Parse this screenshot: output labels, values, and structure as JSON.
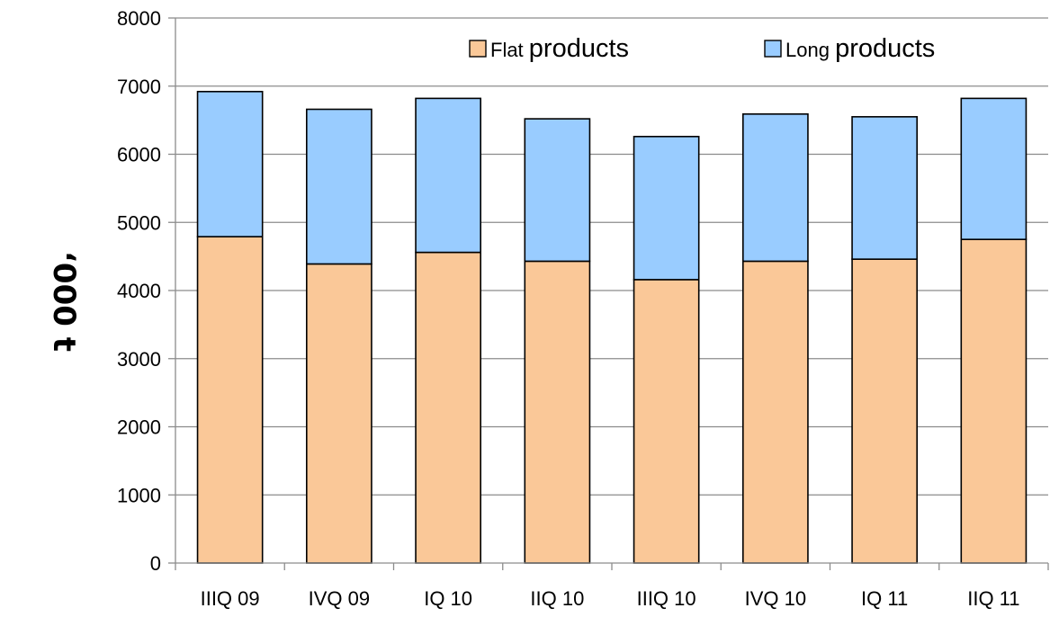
{
  "chart_data": {
    "type": "bar",
    "stacked": true,
    "categories": [
      "IIIQ 09",
      "IVQ 09",
      "IQ 10",
      "IIQ 10",
      "IIIQ 10",
      "IVQ 10",
      "IQ 11",
      "IIQ 11"
    ],
    "series": [
      {
        "name": "Flat products",
        "color": "#fac898",
        "values": [
          4790,
          4390,
          4560,
          4430,
          4160,
          4430,
          4460,
          4750
        ]
      },
      {
        "name": "Long products",
        "color": "#99ccff",
        "values": [
          2130,
          2270,
          2260,
          2090,
          2100,
          2160,
          2090,
          2070
        ]
      }
    ],
    "legend": {
      "position": "top-right",
      "items": [
        {
          "small": "Flat",
          "large": "products"
        },
        {
          "small": "Long",
          "large": "products"
        }
      ]
    },
    "xlabel": "",
    "ylabel": "‘000 t",
    "ylim": [
      0,
      8000
    ],
    "yticks": [
      "0",
      "1000",
      "2000",
      "3000",
      "4000",
      "5000",
      "6000",
      "7000",
      "8000"
    ],
    "grid": true
  }
}
